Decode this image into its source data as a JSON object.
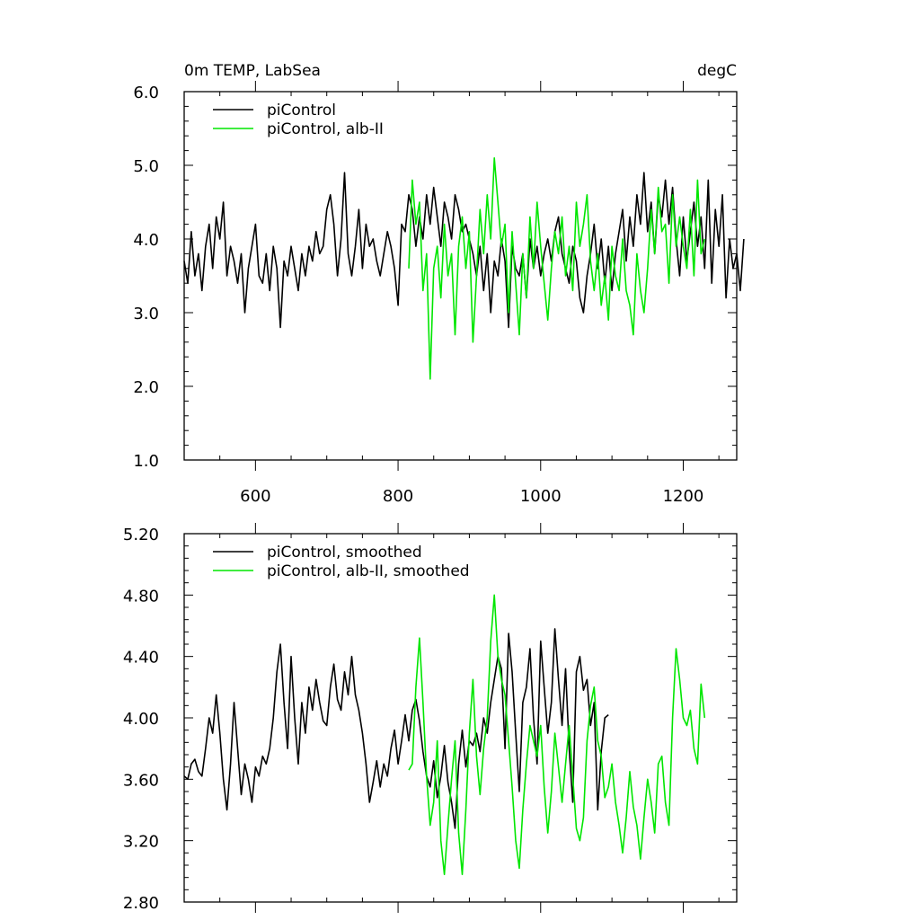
{
  "chart_data": [
    {
      "type": "line",
      "title": "0m TEMP, LabSea",
      "units_label": "degC",
      "xlim": [
        500,
        1275
      ],
      "ylim": [
        1.0,
        6.0
      ],
      "xticks": [
        600,
        800,
        1000,
        1200
      ],
      "xtick_labels": [
        "600",
        "800",
        "1000",
        "1200"
      ],
      "yticks": [
        1.0,
        2.0,
        3.0,
        4.0,
        5.0,
        6.0
      ],
      "ytick_labels": [
        "1.0",
        "2.0",
        "3.0",
        "4.0",
        "5.0",
        "6.0"
      ],
      "legend_position": "top-left",
      "series": [
        {
          "name": "piControl",
          "color": "#000000",
          "x_start": 500,
          "x_step": 5,
          "values": [
            3.7,
            3.4,
            4.1,
            3.5,
            3.8,
            3.3,
            3.9,
            4.2,
            3.6,
            4.3,
            4.0,
            4.5,
            3.5,
            3.9,
            3.7,
            3.4,
            3.8,
            3.0,
            3.6,
            3.9,
            4.2,
            3.5,
            3.4,
            3.8,
            3.3,
            3.9,
            3.6,
            2.8,
            3.7,
            3.5,
            3.9,
            3.6,
            3.3,
            3.8,
            3.5,
            3.9,
            3.7,
            4.1,
            3.8,
            3.9,
            4.4,
            4.6,
            4.2,
            3.5,
            4.0,
            4.9,
            3.8,
            3.5,
            3.9,
            4.4,
            3.6,
            4.2,
            3.9,
            4.0,
            3.7,
            3.5,
            3.8,
            4.1,
            3.9,
            3.6,
            3.1,
            4.2,
            4.1,
            4.6,
            4.4,
            3.9,
            4.3,
            4.0,
            4.6,
            4.2,
            4.7,
            4.3,
            3.9,
            4.5,
            4.3,
            4.0,
            4.6,
            4.4,
            4.1,
            4.2,
            4.0,
            3.8,
            3.5,
            3.9,
            3.3,
            3.8,
            3.0,
            3.7,
            3.5,
            4.0,
            3.7,
            2.8,
            3.9,
            3.6,
            3.5,
            3.8,
            3.2,
            4.0,
            3.6,
            3.9,
            3.5,
            3.8,
            4.0,
            3.7,
            4.1,
            4.3,
            3.8,
            3.6,
            3.4,
            3.9,
            3.7,
            3.2,
            3.0,
            3.5,
            3.8,
            4.2,
            3.6,
            4.0,
            3.4,
            3.9,
            3.3,
            3.8,
            4.1,
            4.4,
            3.7,
            4.3,
            3.9,
            4.6,
            4.2,
            4.9,
            4.1,
            4.5,
            3.8,
            4.6,
            4.3,
            4.8,
            4.2,
            4.7,
            4.0,
            3.5,
            4.3,
            3.7,
            4.1,
            4.5,
            3.9,
            4.3,
            3.6,
            4.8,
            3.4,
            4.4,
            3.9,
            4.6,
            3.2,
            4.0,
            3.6,
            3.8,
            3.3,
            4.0
          ]
        },
        {
          "name": "piControl, alb-II",
          "color": "#00e600",
          "x_start": 815,
          "x_step": 5,
          "values": [
            3.6,
            4.8,
            4.2,
            4.5,
            3.3,
            3.8,
            2.1,
            3.6,
            3.9,
            3.2,
            4.2,
            3.5,
            3.8,
            2.7,
            3.9,
            4.3,
            3.6,
            4.1,
            2.6,
            3.5,
            4.4,
            3.8,
            4.6,
            4.0,
            5.1,
            4.5,
            3.9,
            4.2,
            3.0,
            4.1,
            3.4,
            2.7,
            3.8,
            3.2,
            4.3,
            3.6,
            4.5,
            3.9,
            3.4,
            2.9,
            3.6,
            4.1,
            3.8,
            4.3,
            3.5,
            3.9,
            3.3,
            4.5,
            3.9,
            4.2,
            4.6,
            3.7,
            3.3,
            3.8,
            3.1,
            3.5,
            2.9,
            3.9,
            3.5,
            3.3,
            4.0,
            3.3,
            3.1,
            2.7,
            3.8,
            3.3,
            3.0,
            3.6,
            4.4,
            3.8,
            4.7,
            4.1,
            4.2,
            3.4,
            4.6,
            3.9,
            4.3,
            3.9,
            3.6,
            4.4,
            3.5,
            4.8,
            3.8,
            4.0
          ]
        }
      ]
    },
    {
      "type": "line",
      "title": "",
      "xlim": [
        500,
        1275
      ],
      "ylim": [
        2.8,
        5.2
      ],
      "xticks": [
        600,
        800,
        1000,
        1200
      ],
      "yticks": [
        2.8,
        3.2,
        3.6,
        4.0,
        4.4,
        4.8,
        5.2
      ],
      "ytick_labels": [
        "2.80",
        "3.20",
        "3.60",
        "4.00",
        "4.40",
        "4.80",
        "5.20"
      ],
      "legend_position": "top-left",
      "series": [
        {
          "name": "piControl, smoothed",
          "color": "#000000",
          "x_start": 500,
          "x_step": 5,
          "values": [
            3.62,
            3.6,
            3.7,
            3.73,
            3.65,
            3.62,
            3.8,
            4.0,
            3.9,
            4.15,
            3.9,
            3.6,
            3.4,
            3.7,
            4.1,
            3.8,
            3.5,
            3.7,
            3.6,
            3.45,
            3.68,
            3.62,
            3.75,
            3.7,
            3.8,
            4.0,
            4.3,
            4.48,
            4.1,
            3.8,
            4.4,
            4.0,
            3.7,
            4.1,
            3.9,
            4.2,
            4.05,
            4.25,
            4.1,
            3.98,
            3.95,
            4.2,
            4.35,
            4.12,
            4.05,
            4.3,
            4.15,
            4.4,
            4.15,
            4.05,
            3.9,
            3.7,
            3.45,
            3.58,
            3.72,
            3.55,
            3.7,
            3.62,
            3.8,
            3.92,
            3.7,
            3.85,
            4.02,
            3.85,
            4.05,
            4.12,
            3.98,
            3.78,
            3.62,
            3.55,
            3.72,
            3.48,
            3.62,
            3.82,
            3.58,
            3.45,
            3.28,
            3.7,
            3.92,
            3.68,
            3.85,
            3.82,
            3.9,
            3.78,
            4.0,
            3.9,
            4.1,
            4.25,
            4.4,
            4.32,
            3.8,
            4.55,
            4.3,
            3.9,
            3.52,
            4.1,
            4.2,
            4.45,
            4.0,
            3.7,
            4.5,
            4.2,
            3.9,
            4.1,
            4.58,
            4.25,
            3.95,
            4.32,
            3.8,
            3.45,
            4.3,
            4.4,
            4.18,
            4.25,
            3.95,
            4.1,
            3.4,
            3.78,
            4.0,
            4.02
          ]
        },
        {
          "name": "piControl, alb-II, smoothed",
          "color": "#00e600",
          "x_start": 815,
          "x_step": 5,
          "values": [
            3.66,
            3.7,
            4.2,
            4.52,
            4.1,
            3.62,
            3.3,
            3.45,
            3.85,
            3.2,
            2.98,
            3.3,
            3.6,
            3.85,
            3.25,
            2.98,
            3.4,
            3.9,
            4.25,
            3.75,
            3.5,
            3.8,
            4.0,
            4.5,
            4.8,
            4.4,
            4.25,
            4.15,
            3.85,
            3.55,
            3.2,
            3.02,
            3.4,
            3.7,
            3.95,
            3.85,
            3.75,
            3.95,
            3.55,
            3.25,
            3.52,
            3.9,
            3.68,
            3.45,
            3.7,
            3.95,
            3.62,
            3.28,
            3.2,
            3.35,
            3.85,
            4.08,
            4.2,
            3.85,
            3.75,
            3.48,
            3.55,
            3.7,
            3.45,
            3.3,
            3.12,
            3.35,
            3.65,
            3.42,
            3.3,
            3.08,
            3.35,
            3.6,
            3.45,
            3.25,
            3.7,
            3.75,
            3.45,
            3.3,
            4.0,
            4.45,
            4.25,
            4.0,
            3.95,
            4.05,
            3.8,
            3.7,
            4.22,
            4.0
          ]
        }
      ]
    }
  ]
}
